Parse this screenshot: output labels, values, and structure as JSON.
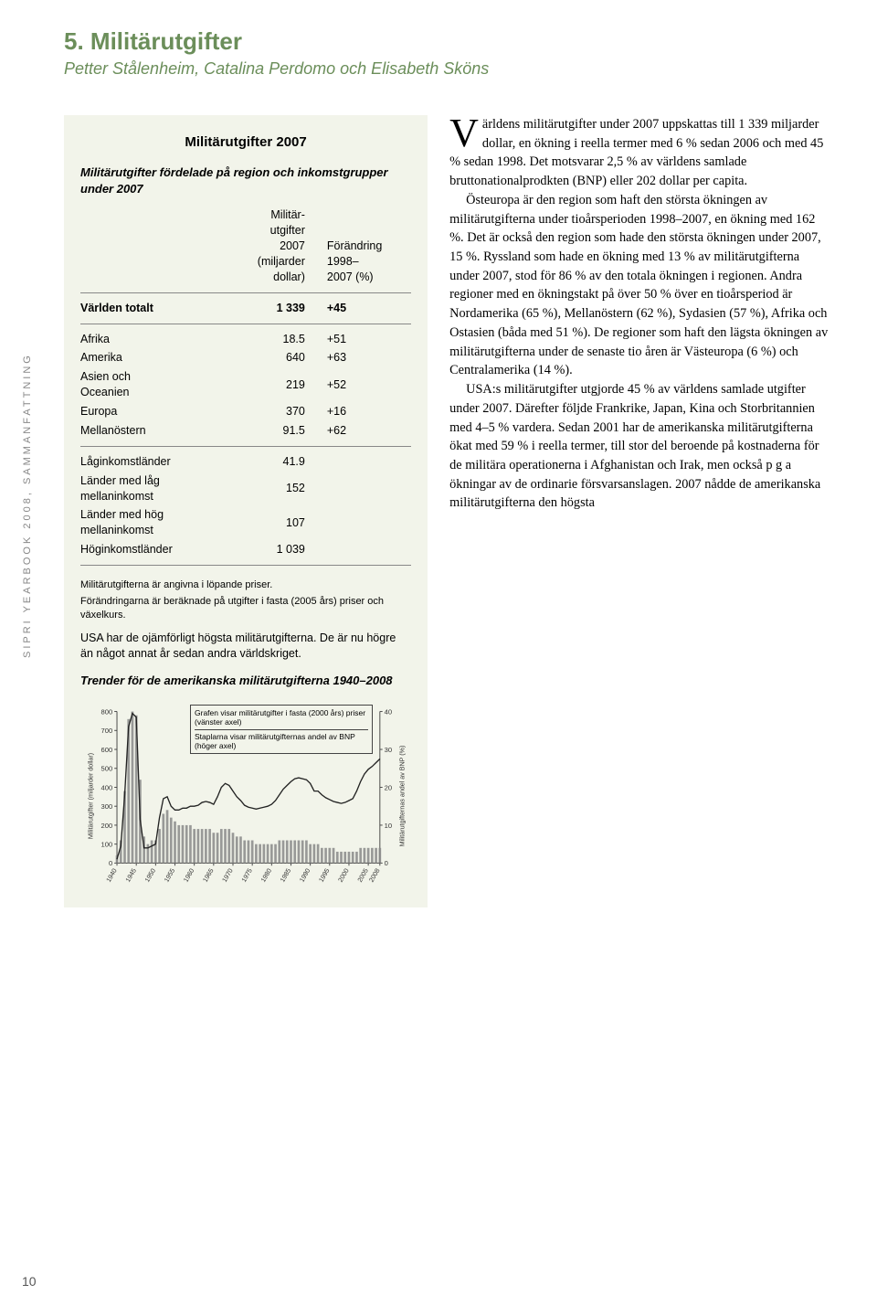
{
  "chapter": {
    "title": "5. Militärutgifter",
    "authors": "Petter Stålenheim, Catalina Perdomo och Elisabeth Sköns"
  },
  "spine": "SIPRI YEARBOOK 2008, SAMMANFATTNING",
  "pagenum": "10",
  "box": {
    "title": "Militärutgifter 2007",
    "sub1": "Militärutgifter fördelade på region och inkomstgrupper under 2007",
    "header": {
      "c1": "",
      "c2": "Militär-\nutgifter\n2007\n(miljarder\ndollar)",
      "c3": "Förändring\n1998–\n2007 (%)"
    },
    "world": {
      "label": "Världen totalt",
      "val": "1 339",
      "chg": "+45"
    },
    "rows": [
      {
        "label": "Afrika",
        "val": "18.5",
        "chg": "+51"
      },
      {
        "label": "Amerika",
        "val": "640",
        "chg": "+63"
      },
      {
        "label": "Asien och\nOceanien",
        "val": "219",
        "chg": "+52"
      },
      {
        "label": "Europa",
        "val": "370",
        "chg": "+16"
      },
      {
        "label": "Mellanöstern",
        "val": "91.5",
        "chg": "+62"
      }
    ],
    "rows2": [
      {
        "label": "Låginkomstländer",
        "val": "41.9",
        "chg": ""
      },
      {
        "label": "Länder med låg\nmellaninkomst",
        "val": "152",
        "chg": ""
      },
      {
        "label": "Länder med hög\nmellaninkomst",
        "val": "107",
        "chg": ""
      },
      {
        "label": "Höginkomstländer",
        "val": "1 039",
        "chg": ""
      }
    ],
    "foot1": "Militärutgifterna är angivna i löpande priser.",
    "foot2": "Förändringarna är beräknade på utgifter i fasta (2005 års) priser och växelkurs.",
    "para": "USA har de ojämförligt högsta militärutgifterna. De är nu högre än något annat år sedan andra världskriget.",
    "chart_title": "Trender för de amerikanska militärutgifterna 1940–2008"
  },
  "chart": {
    "type": "combo-line-bar",
    "y1_label": "Militärutgifter (miljarder dollar)",
    "y2_label": "Militärutgifternas andel av BNP (%)",
    "legend1": "Grafen visar militärutgifter i fasta (2000 års) priser (vänster axel)",
    "legend2": "Staplarna visar militärutgifternas andel av BNP (höger axel)",
    "y1_ticks": [
      0,
      100,
      200,
      300,
      400,
      500,
      600,
      700,
      800
    ],
    "y2_ticks": [
      0,
      10,
      20,
      30,
      40
    ],
    "x_ticks": [
      1940,
      1945,
      1950,
      1955,
      1960,
      1965,
      1970,
      1975,
      1980,
      1985,
      1990,
      1995,
      2000,
      2005,
      2008
    ],
    "line_color": "#222222",
    "bar_color": "#888888",
    "bg_color": "#f2f4ea",
    "line_width": 1.4,
    "bar_width": 2.8,
    "line": [
      [
        1940,
        20
      ],
      [
        1941,
        90
      ],
      [
        1942,
        360
      ],
      [
        1943,
        720
      ],
      [
        1944,
        790
      ],
      [
        1945,
        770
      ],
      [
        1946,
        230
      ],
      [
        1947,
        80
      ],
      [
        1948,
        80
      ],
      [
        1949,
        90
      ],
      [
        1950,
        100
      ],
      [
        1951,
        240
      ],
      [
        1952,
        340
      ],
      [
        1953,
        350
      ],
      [
        1954,
        300
      ],
      [
        1955,
        280
      ],
      [
        1956,
        280
      ],
      [
        1957,
        290
      ],
      [
        1958,
        290
      ],
      [
        1959,
        300
      ],
      [
        1960,
        300
      ],
      [
        1961,
        305
      ],
      [
        1962,
        320
      ],
      [
        1963,
        325
      ],
      [
        1964,
        320
      ],
      [
        1965,
        310
      ],
      [
        1966,
        350
      ],
      [
        1967,
        400
      ],
      [
        1968,
        420
      ],
      [
        1969,
        410
      ],
      [
        1970,
        380
      ],
      [
        1971,
        350
      ],
      [
        1972,
        330
      ],
      [
        1973,
        305
      ],
      [
        1974,
        295
      ],
      [
        1975,
        290
      ],
      [
        1976,
        285
      ],
      [
        1977,
        290
      ],
      [
        1978,
        295
      ],
      [
        1979,
        300
      ],
      [
        1980,
        310
      ],
      [
        1981,
        330
      ],
      [
        1982,
        360
      ],
      [
        1983,
        390
      ],
      [
        1984,
        410
      ],
      [
        1985,
        430
      ],
      [
        1986,
        445
      ],
      [
        1987,
        450
      ],
      [
        1988,
        445
      ],
      [
        1989,
        440
      ],
      [
        1990,
        420
      ],
      [
        1991,
        380
      ],
      [
        1992,
        380
      ],
      [
        1993,
        360
      ],
      [
        1994,
        345
      ],
      [
        1995,
        335
      ],
      [
        1996,
        325
      ],
      [
        1997,
        320
      ],
      [
        1998,
        315
      ],
      [
        1999,
        320
      ],
      [
        2000,
        330
      ],
      [
        2001,
        340
      ],
      [
        2002,
        380
      ],
      [
        2003,
        430
      ],
      [
        2004,
        470
      ],
      [
        2005,
        495
      ],
      [
        2006,
        510
      ],
      [
        2007,
        530
      ],
      [
        2008,
        550
      ]
    ],
    "bars": [
      [
        1940,
        2
      ],
      [
        1941,
        6
      ],
      [
        1942,
        19
      ],
      [
        1943,
        38
      ],
      [
        1944,
        40
      ],
      [
        1945,
        39
      ],
      [
        1946,
        22
      ],
      [
        1947,
        7
      ],
      [
        1948,
        5
      ],
      [
        1949,
        6
      ],
      [
        1950,
        6
      ],
      [
        1951,
        9
      ],
      [
        1952,
        13
      ],
      [
        1953,
        14
      ],
      [
        1954,
        12
      ],
      [
        1955,
        11
      ],
      [
        1956,
        10
      ],
      [
        1957,
        10
      ],
      [
        1958,
        10
      ],
      [
        1959,
        10
      ],
      [
        1960,
        9
      ],
      [
        1961,
        9
      ],
      [
        1962,
        9
      ],
      [
        1963,
        9
      ],
      [
        1964,
        9
      ],
      [
        1965,
        8
      ],
      [
        1966,
        8
      ],
      [
        1967,
        9
      ],
      [
        1968,
        9
      ],
      [
        1969,
        9
      ],
      [
        1970,
        8
      ],
      [
        1971,
        7
      ],
      [
        1972,
        7
      ],
      [
        1973,
        6
      ],
      [
        1974,
        6
      ],
      [
        1975,
        6
      ],
      [
        1976,
        5
      ],
      [
        1977,
        5
      ],
      [
        1978,
        5
      ],
      [
        1979,
        5
      ],
      [
        1980,
        5
      ],
      [
        1981,
        5
      ],
      [
        1982,
        6
      ],
      [
        1983,
        6
      ],
      [
        1984,
        6
      ],
      [
        1985,
        6
      ],
      [
        1986,
        6
      ],
      [
        1987,
        6
      ],
      [
        1988,
        6
      ],
      [
        1989,
        6
      ],
      [
        1990,
        5
      ],
      [
        1991,
        5
      ],
      [
        1992,
        5
      ],
      [
        1993,
        4
      ],
      [
        1994,
        4
      ],
      [
        1995,
        4
      ],
      [
        1996,
        4
      ],
      [
        1997,
        3
      ],
      [
        1998,
        3
      ],
      [
        1999,
        3
      ],
      [
        2000,
        3
      ],
      [
        2001,
        3
      ],
      [
        2002,
        3
      ],
      [
        2003,
        4
      ],
      [
        2004,
        4
      ],
      [
        2005,
        4
      ],
      [
        2006,
        4
      ],
      [
        2007,
        4
      ],
      [
        2008,
        4
      ]
    ]
  },
  "body": {
    "p1_dropcap": "V",
    "p1": "ärldens militärutgifter under 2007 uppskattas till 1 339 miljarder dollar, en ökning i reella termer med 6 % sedan 2006 och med 45 % sedan 1998. Det motsvarar 2,5 % av världens samlade bruttonationalprodkten (BNP) eller 202 dollar per capita.",
    "p2": "Östeuropa är den region som haft den största ökningen av militärutgifterna under tioårsperioden 1998–2007, en ökning med 162 %. Det är också den region som hade den största ökningen under 2007, 15 %. Ryssland som hade en ökning med 13 % av militärutgifterna under 2007, stod för 86 % av den totala ökningen i regionen. Andra regioner med en ökningstakt på över 50 % över en tioårsperiod är Nordamerika (65 %), Mellanöstern (62 %), Sydasien (57 %), Afrika och Ostasien (båda med 51 %). De regioner som haft den lägsta ökningen av militärutgifterna under de senaste tio åren är Västeuropa (6 %) och Centralamerika (14 %).",
    "p3": "USA:s militärutgifter utgjorde 45 % av världens samlade utgifter under 2007. Därefter följde Frankrike, Japan, Kina och Storbritannien med 4–5 % vardera. Sedan 2001 har de amerikanska militärutgifterna ökat med 59 % i reella termer, till stor del beroende på kostnaderna för de militära operationerna i Afghanistan och Irak, men också p g a ökningar av de ordinarie försvarsanslagen. 2007 nådde de amerikanska militärutgifterna den högsta"
  }
}
